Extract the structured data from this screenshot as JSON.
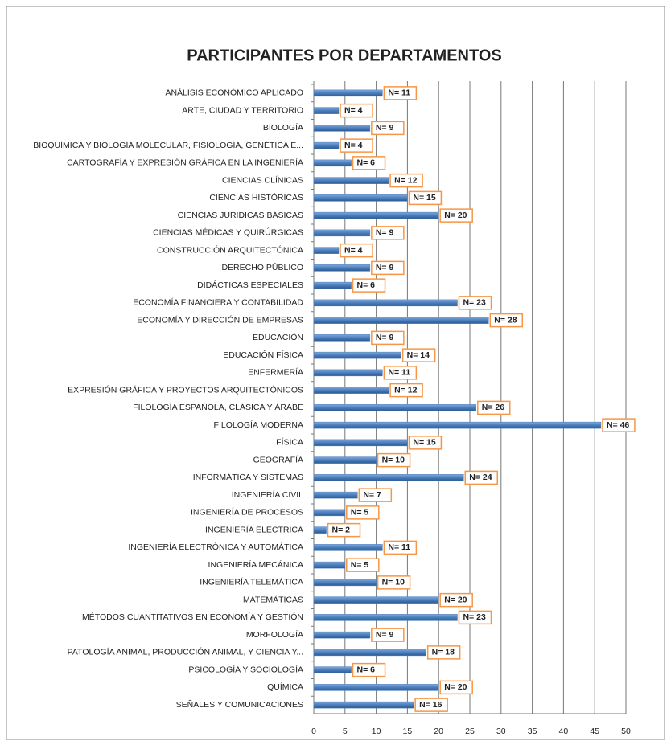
{
  "chart_data": {
    "type": "barh",
    "title": "PARTICIPANTES POR DEPARTAMENTOS",
    "categories": [
      "ANÁLISIS ECONÓMICO APLICADO",
      "ARTE, CIUDAD Y TERRITORIO",
      "BIOLOGÍA",
      "BIOQUÍMICA Y BIOLOGÍA MOLECULAR, FISIOLOGÍA, GENÉTICA E...",
      "CARTOGRAFÍA Y EXPRESIÓN GRÁFICA EN LA INGENIERÍA",
      "CIENCIAS CLÍNICAS",
      "CIENCIAS HISTÓRICAS",
      "CIENCIAS JURÍDICAS BÁSICAS",
      "CIENCIAS MÉDICAS Y QUIRÚRGICAS",
      "CONSTRUCCIÓN ARQUITECTÓNICA",
      "DERECHO PÚBLICO",
      "DIDÁCTICAS ESPECIALES",
      "ECONOMÍA FINANCIERA Y CONTABILIDAD",
      "ECONOMÍA Y DIRECCIÓN DE EMPRESAS",
      "EDUCACIÓN",
      "EDUCACIÓN FÍSICA",
      "ENFERMERÍA",
      "EXPRESIÓN GRÁFICA Y PROYECTOS ARQUITECTÓNICOS",
      "FILOLOGÍA ESPAÑOLA, CLÁSICA Y ÁRABE",
      "FILOLOGÍA MODERNA",
      "FÍSICA",
      "GEOGRAFÍA",
      "INFORMÁTICA Y SISTEMAS",
      "INGENIERÍA CIVIL",
      "INGENIERÍA DE PROCESOS",
      "INGENIERÍA ELÉCTRICA",
      "INGENIERÍA ELECTRÓNICA Y AUTOMÁTICA",
      "INGENIERÍA MECÁNICA",
      "INGENIERÍA TELEMÁTICA",
      "MATEMÁTICAS",
      "MÉTODOS CUANTITATIVOS EN ECONOMÍA Y GESTIÓN",
      "MORFOLOGÍA",
      "PATOLOGÍA ANIMAL, PRODUCCIÓN ANIMAL,  Y CIENCIA Y...",
      "PSICOLOGÍA Y SOCIOLOGÍA",
      "QUÍMICA",
      "SEÑALES Y COMUNICACIONES"
    ],
    "values": [
      11,
      4,
      9,
      4,
      6,
      12,
      15,
      20,
      9,
      4,
      9,
      6,
      23,
      28,
      9,
      14,
      11,
      12,
      26,
      46,
      15,
      10,
      24,
      7,
      5,
      2,
      11,
      5,
      10,
      20,
      23,
      9,
      18,
      6,
      20,
      16
    ],
    "value_labels": [
      "N= 11",
      "N= 4",
      "N= 9",
      "N= 4",
      "N= 6",
      "N= 12",
      "N= 15",
      "N= 20",
      "N= 9",
      "N= 4",
      "N= 9",
      "N= 6",
      "N= 23",
      "N= 28",
      "N= 9",
      "N= 14",
      "N= 11",
      "N= 12",
      "N= 26",
      "N= 46",
      "N= 15",
      "N= 10",
      "N= 24",
      "N= 7",
      "N= 5",
      "N= 2",
      "N= 11",
      "N= 5",
      "N= 10",
      "N= 20",
      "N= 23",
      "N= 9",
      "N= 18",
      "N= 6",
      "N= 20",
      "N= 16"
    ],
    "color": "#4a7ebb",
    "label_border": "#f79646",
    "xlim": [
      0,
      50
    ],
    "xticks": [
      0,
      5,
      10,
      15,
      20,
      25,
      30,
      35,
      40,
      45,
      50
    ],
    "grid": true
  }
}
